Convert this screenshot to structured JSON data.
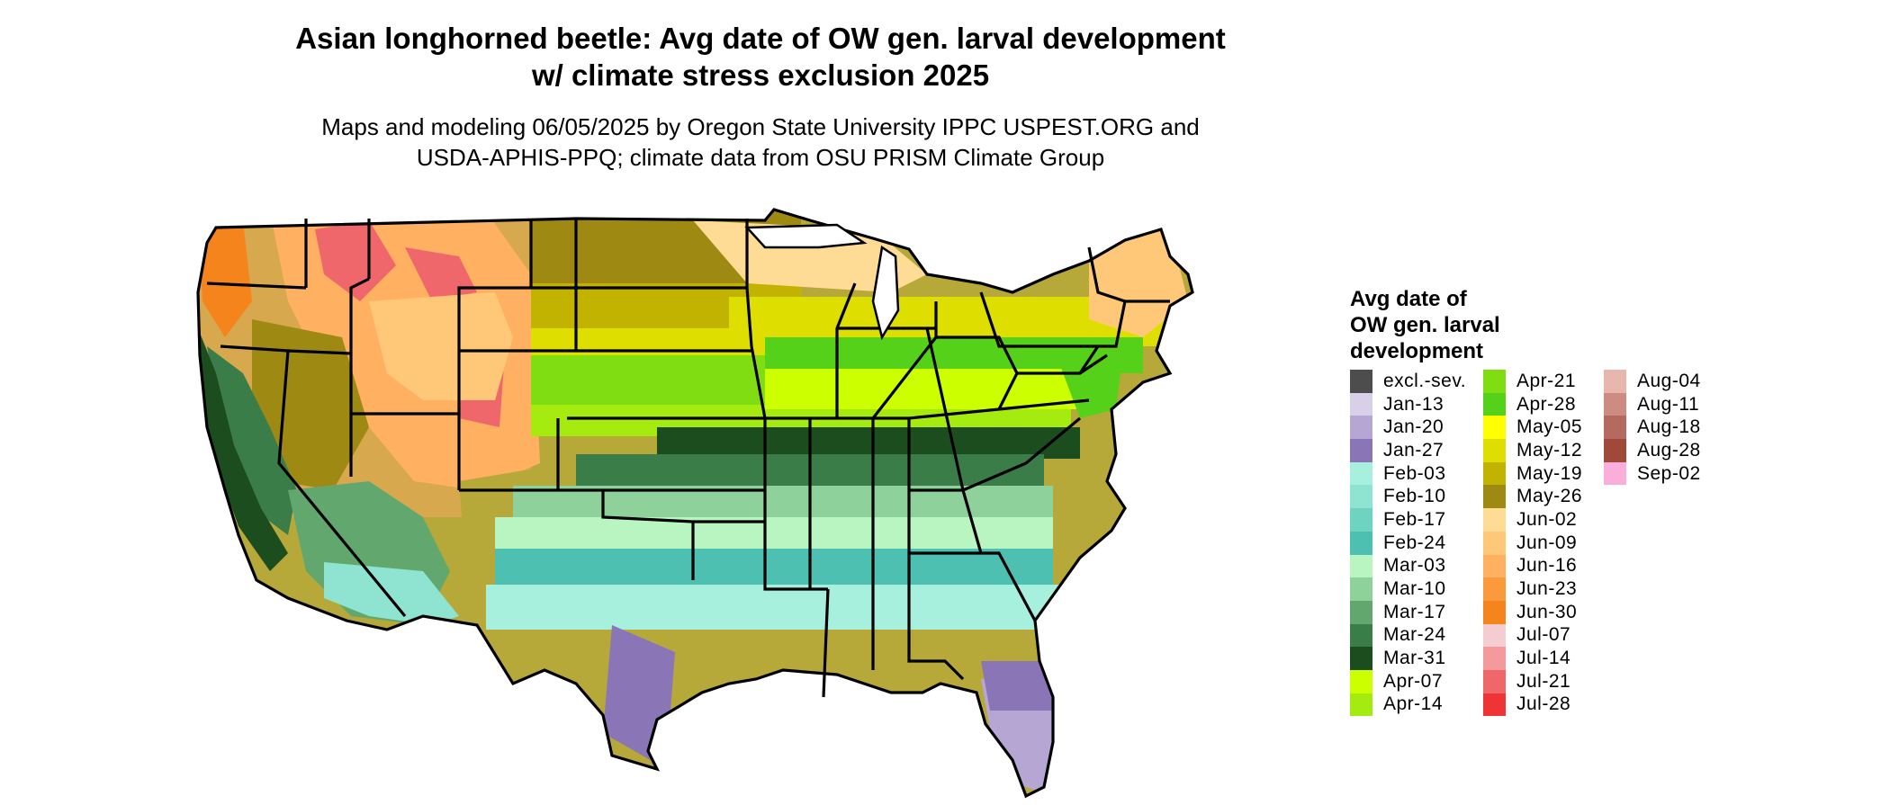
{
  "title_line1": "Asian longhorned beetle: Avg date of OW gen. larval development",
  "title_line2": "w/ climate stress exclusion 2025",
  "subtitle_line1": "Maps and modeling 06/05/2025 by Oregon State University IPPC USPEST.ORG and",
  "subtitle_line2": "USDA-APHIS-PPQ; climate data from OSU PRISM Climate Group",
  "legend": {
    "title_line1": "Avg date of",
    "title_line2": "OW gen. larval",
    "title_line3": "development",
    "items": [
      {
        "label": "excl.-sev.",
        "color": "#4d4d4d"
      },
      {
        "label": "Jan-13",
        "color": "#d8d0e8"
      },
      {
        "label": "Jan-20",
        "color": "#b5a6d3"
      },
      {
        "label": "Jan-27",
        "color": "#8a76b7"
      },
      {
        "label": "Feb-03",
        "color": "#a8f0de"
      },
      {
        "label": "Feb-10",
        "color": "#8fe3d1"
      },
      {
        "label": "Feb-17",
        "color": "#6fd3c2"
      },
      {
        "label": "Feb-24",
        "color": "#4ec0b1"
      },
      {
        "label": "Mar-03",
        "color": "#b8f5c0"
      },
      {
        "label": "Mar-10",
        "color": "#8fd19a"
      },
      {
        "label": "Mar-17",
        "color": "#62a86e"
      },
      {
        "label": "Mar-24",
        "color": "#3b7d48"
      },
      {
        "label": "Mar-31",
        "color": "#1c4d1f"
      },
      {
        "label": "Apr-07",
        "color": "#ccff00"
      },
      {
        "label": "Apr-14",
        "color": "#a6eb0f"
      },
      {
        "label": "Apr-21",
        "color": "#80dd12"
      },
      {
        "label": "Apr-28",
        "color": "#55d11a"
      },
      {
        "label": "May-05",
        "color": "#ffff00"
      },
      {
        "label": "May-12",
        "color": "#dede00"
      },
      {
        "label": "May-19",
        "color": "#c2b300"
      },
      {
        "label": "May-26",
        "color": "#9e8a12"
      },
      {
        "label": "Jun-02",
        "color": "#ffdc96"
      },
      {
        "label": "Jun-09",
        "color": "#ffc878"
      },
      {
        "label": "Jun-16",
        "color": "#ffb060"
      },
      {
        "label": "Jun-23",
        "color": "#fb9a3c"
      },
      {
        "label": "Jun-30",
        "color": "#f6841c"
      },
      {
        "label": "Jul-07",
        "color": "#f4cdd1"
      },
      {
        "label": "Jul-14",
        "color": "#f49a9c"
      },
      {
        "label": "Jul-21",
        "color": "#f0676b"
      },
      {
        "label": "Jul-28",
        "color": "#ee3434"
      },
      {
        "label": "Aug-04",
        "color": "#e7b6ad"
      },
      {
        "label": "Aug-11",
        "color": "#cd8c82"
      },
      {
        "label": "Aug-18",
        "color": "#b56a5f"
      },
      {
        "label": "Aug-28",
        "color": "#a0493b"
      },
      {
        "label": "Sep-02",
        "color": "#f9aedb"
      }
    ]
  }
}
